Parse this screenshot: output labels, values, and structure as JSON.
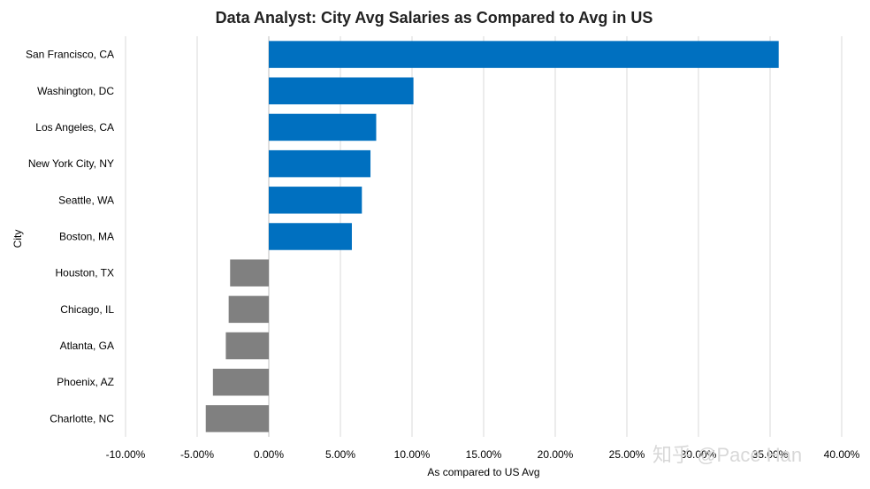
{
  "chart_data": {
    "type": "bar",
    "orientation": "horizontal",
    "title": "Data Analyst: City Avg Salaries as Compared to Avg in US",
    "xlabel": "As compared to US Avg",
    "ylabel": "City",
    "xlim": [
      -0.1,
      0.4
    ],
    "x_tick_labels": [
      "-10.00%",
      "-5.00%",
      "0.00%",
      "5.00%",
      "10.00%",
      "15.00%",
      "20.00%",
      "25.00%",
      "30.00%",
      "35.00%",
      "40.00%"
    ],
    "grid": true,
    "categories": [
      "San Francisco, CA",
      "Washington, DC",
      "Los Angeles, CA",
      "New York City, NY",
      "Seattle, WA",
      "Boston, MA",
      "Houston, TX",
      "Chicago, IL",
      "Atlanta, GA",
      "Phoenix, AZ",
      "Charlotte, NC"
    ],
    "values": [
      0.356,
      0.101,
      0.075,
      0.071,
      0.065,
      0.058,
      -0.027,
      -0.028,
      -0.03,
      -0.039,
      -0.044
    ],
    "colors": {
      "positive": "#0070C0",
      "negative": "#808080",
      "grid": "#d9d9d9",
      "axis": "#bfbfbf"
    }
  },
  "watermark": "知乎 @Pace Han"
}
